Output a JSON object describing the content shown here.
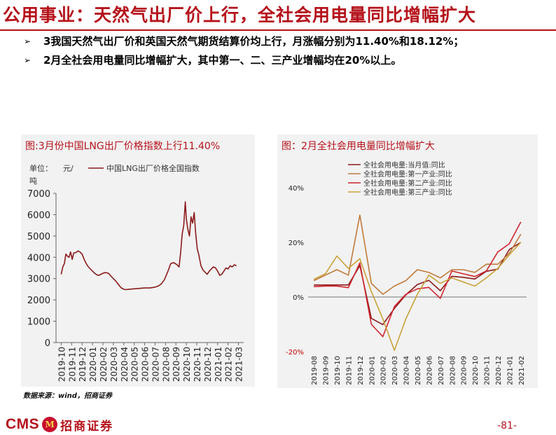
{
  "page": {
    "title": "公用事业：天然气出厂价上行，全社会用电量同比增幅扩大",
    "bullets": [
      "3我国天然气出厂价和英国天然气期货结算价均上行，月涨幅分别为11.40%和18.12%；",
      "2月全社会用电量同比增幅扩大，其中第一、二、三产业增幅均在20%以上。"
    ],
    "bullet_icon": "arrow-bullet-icon",
    "source": "数据来源：wind，招商证券",
    "logo_text": "CMS",
    "logo_cn": "招商证券",
    "logo_mark": "M",
    "page_number": "-81-",
    "brand_color": "#b5121b"
  },
  "chart_data": [
    {
      "type": "line",
      "title": "图:3月份中国LNG出厂价格指数上行11.40%",
      "ylabel": "单位：元/吨",
      "ylabel_parts": [
        "单位：",
        "元/",
        "吨"
      ],
      "y_ticks": [
        "0",
        "1000",
        "2000",
        "3000",
        "4000",
        "5000",
        "6000",
        "7000"
      ],
      "ylim": [
        0,
        7000
      ],
      "x_ticks": [
        "2019-10",
        "2019-11",
        "2019-12",
        "2020-01",
        "2020-02",
        "2020-03",
        "2020-04",
        "2020-05",
        "2020-06",
        "2020-07",
        "2020-08",
        "2020-09",
        "2020-10",
        "2020-11",
        "2020-12",
        "2021-01",
        "2021-02",
        "2021-03"
      ],
      "legend": "top",
      "color": "#8b1a1a",
      "series": [
        {
          "name": "中国LNG出厂价格全国指数",
          "points": [
            [
              0.0,
              3200
            ],
            [
              0.15,
              3550
            ],
            [
              0.3,
              3700
            ],
            [
              0.45,
              4150
            ],
            [
              0.6,
              4050
            ],
            [
              0.75,
              4000
            ],
            [
              0.9,
              4250
            ],
            [
              1.05,
              3900
            ],
            [
              1.2,
              4200
            ],
            [
              1.4,
              4220
            ],
            [
              1.6,
              4300
            ],
            [
              1.8,
              4250
            ],
            [
              2.0,
              4150
            ],
            [
              2.2,
              3900
            ],
            [
              2.4,
              3700
            ],
            [
              2.6,
              3550
            ],
            [
              2.8,
              3450
            ],
            [
              3.0,
              3350
            ],
            [
              3.2,
              3250
            ],
            [
              3.4,
              3180
            ],
            [
              3.6,
              3150
            ],
            [
              3.8,
              3200
            ],
            [
              4.0,
              3250
            ],
            [
              4.2,
              3280
            ],
            [
              4.4,
              3270
            ],
            [
              4.6,
              3220
            ],
            [
              4.8,
              3100
            ],
            [
              5.0,
              3000
            ],
            [
              5.2,
              2900
            ],
            [
              5.4,
              2780
            ],
            [
              5.6,
              2650
            ],
            [
              5.8,
              2550
            ],
            [
              6.0,
              2500
            ],
            [
              6.2,
              2480
            ],
            [
              6.5,
              2500
            ],
            [
              7.0,
              2520
            ],
            [
              7.5,
              2540
            ],
            [
              8.0,
              2560
            ],
            [
              8.5,
              2560
            ],
            [
              9.0,
              2600
            ],
            [
              9.3,
              2650
            ],
            [
              9.6,
              2750
            ],
            [
              9.9,
              2950
            ],
            [
              10.2,
              3300
            ],
            [
              10.5,
              3700
            ],
            [
              10.8,
              3750
            ],
            [
              11.1,
              3650
            ],
            [
              11.3,
              3550
            ],
            [
              11.45,
              4200
            ],
            [
              11.6,
              5100
            ],
            [
              11.75,
              5500
            ],
            [
              11.9,
              6600
            ],
            [
              12.0,
              5800
            ],
            [
              12.15,
              5300
            ],
            [
              12.3,
              5000
            ],
            [
              12.45,
              5900
            ],
            [
              12.6,
              5600
            ],
            [
              12.75,
              6100
            ],
            [
              12.9,
              5100
            ],
            [
              13.05,
              4400
            ],
            [
              13.2,
              4100
            ],
            [
              13.4,
              3600
            ],
            [
              13.6,
              3400
            ],
            [
              13.8,
              3300
            ],
            [
              14.0,
              3200
            ],
            [
              14.2,
              3350
            ],
            [
              14.4,
              3450
            ],
            [
              14.6,
              3550
            ],
            [
              14.8,
              3500
            ],
            [
              15.0,
              3350
            ],
            [
              15.2,
              3150
            ],
            [
              15.4,
              3200
            ],
            [
              15.6,
              3350
            ],
            [
              15.8,
              3500
            ],
            [
              16.0,
              3450
            ],
            [
              16.2,
              3600
            ],
            [
              16.4,
              3550
            ],
            [
              16.6,
              3650
            ],
            [
              16.8,
              3600
            ]
          ]
        }
      ]
    },
    {
      "type": "line",
      "title": "图：2月全社会用电量同比增幅扩大",
      "y_ticks": [
        "-20%",
        "0%",
        "20%",
        "40%"
      ],
      "ylim": [
        -20,
        40
      ],
      "x_ticks": [
        "2019-08",
        "2019-09",
        "2019-10",
        "2019-11",
        "2019-12",
        "2020-01",
        "2020-02",
        "2020-03",
        "2020-04",
        "2020-05",
        "2020-06",
        "2020-07",
        "2020-08",
        "2020-09",
        "2020-10",
        "2020-11",
        "2020-12",
        "2021-01",
        "2021-02"
      ],
      "legend": "top-right",
      "series": [
        {
          "name": "全社会用电量:当月值:同比",
          "color": "#8b1a1a",
          "values": [
            4.4,
            4.4,
            4.4,
            4.4,
            11.5,
            -7.8,
            -10.1,
            -4.2,
            0.8,
            4.6,
            6.1,
            2.3,
            7.6,
            7.2,
            6.6,
            9.4,
            10.2,
            17.4,
            20.0
          ]
        },
        {
          "name": "全社会用电量:第一产业:同比",
          "color": "#c07a3c",
          "values": [
            6.0,
            8.0,
            10.0,
            8.0,
            30.0,
            5.0,
            1.0,
            4.0,
            6.0,
            10.0,
            9.0,
            7.0,
            10.0,
            10.0,
            9.0,
            12.0,
            12.0,
            16.0,
            23.0
          ]
        },
        {
          "name": "全社会用电量:第二产业:同比",
          "color": "#d0252d",
          "values": [
            3.8,
            4.0,
            4.0,
            3.4,
            12.5,
            -10.0,
            -14.5,
            -3.5,
            1.0,
            3.0,
            3.5,
            -0.5,
            9.5,
            8.5,
            7.5,
            9.5,
            16.5,
            19.5,
            27.5
          ]
        },
        {
          "name": "全社会用电量:第三产业:同比",
          "color": "#c8a23a",
          "values": [
            6.5,
            8.5,
            15.0,
            10.5,
            14.0,
            2.0,
            -8.0,
            -19.5,
            -8.0,
            1.0,
            8.0,
            5.0,
            7.0,
            5.5,
            4.0,
            7.0,
            10.5,
            15.5,
            20.0
          ]
        }
      ]
    }
  ]
}
